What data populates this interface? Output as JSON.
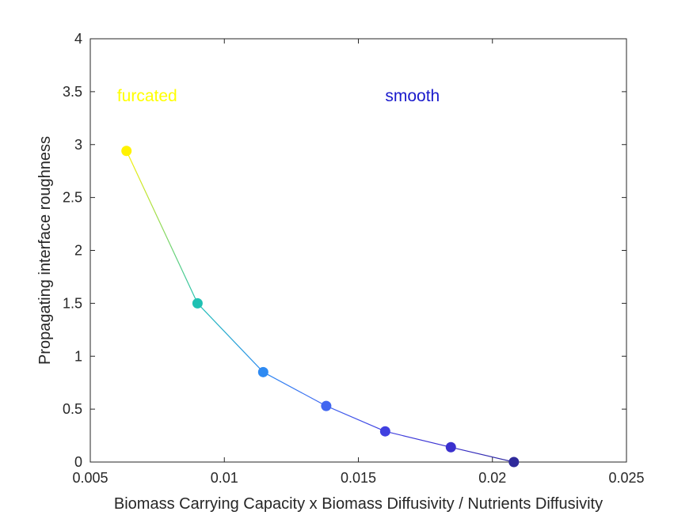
{
  "chart_data": {
    "type": "line",
    "title": "",
    "xlabel": "Biomass Carrying Capacity x Biomass Diffusivity / Nutrients Diffusivity",
    "ylabel": "Propagating interface roughness",
    "xlim": [
      0.005,
      0.025
    ],
    "ylim": [
      0,
      4
    ],
    "xticks": [
      0.005,
      0.01,
      0.015,
      0.02,
      0.025
    ],
    "xtick_labels": [
      "0.005",
      "0.01",
      "0.015",
      "0.02",
      "0.025"
    ],
    "yticks": [
      0,
      0.5,
      1,
      1.5,
      2,
      2.5,
      3,
      3.5,
      4
    ],
    "ytick_labels": [
      "0",
      "0.5",
      "1",
      "1.5",
      "2",
      "2.5",
      "3",
      "3.5",
      "4"
    ],
    "grid": false,
    "legend": "none",
    "series": [
      {
        "x": [
          0.00635,
          0.009,
          0.01145,
          0.0138,
          0.016,
          0.01845,
          0.0208
        ],
        "y": [
          2.94,
          1.5,
          0.85,
          0.53,
          0.29,
          0.14,
          0.0
        ],
        "colors": [
          "#FFF200",
          "#1FC1B3",
          "#2E8AF2",
          "#4166F0",
          "#4040E0",
          "#3A30CE",
          "#2F2A9B"
        ]
      }
    ],
    "annotations": [
      {
        "text": "furcated",
        "x": 0.006,
        "y": 3.47,
        "color": "#FFFF00"
      },
      {
        "text": "smooth",
        "x": 0.016,
        "y": 3.47,
        "color": "#1A1ACC"
      }
    ]
  }
}
